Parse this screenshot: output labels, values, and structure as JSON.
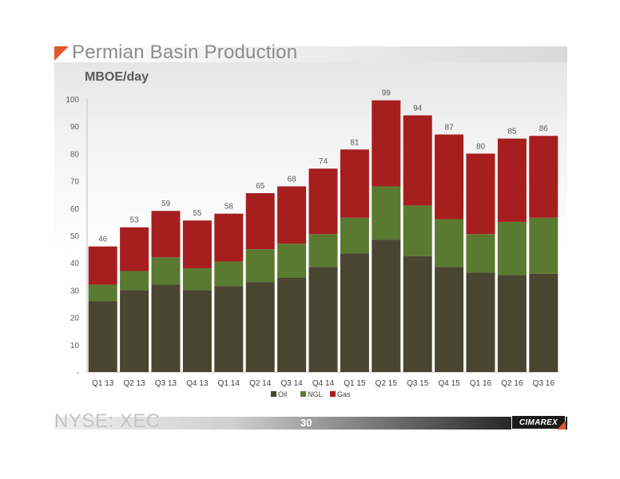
{
  "title": "Permian Basin Production",
  "subtitle": "MBOE/day",
  "footer": {
    "ticker": "NYSE: XEC",
    "page_number": "30",
    "logo_text": "CIMAREX"
  },
  "colors": {
    "oil": "#4a4530",
    "ngl": "#5b7a31",
    "gas": "#a61e1e",
    "accent": "#e2572b"
  },
  "chart_data": {
    "type": "bar",
    "stacked": true,
    "categories": [
      "Q1 13",
      "Q2 13",
      "Q3 13",
      "Q4 13",
      "Q1 14",
      "Q2 14",
      "Q3 14",
      "Q4 14",
      "Q1 15",
      "Q2 15",
      "Q3 15",
      "Q4 15",
      "Q1 16",
      "Q2 16",
      "Q3 16"
    ],
    "series": [
      {
        "name": "Oil",
        "values": [
          26,
          30,
          32,
          30,
          31.5,
          33,
          34.5,
          38.5,
          43.5,
          48.5,
          42.5,
          38.5,
          36.5,
          35.5,
          36
        ]
      },
      {
        "name": "NGL",
        "values": [
          6,
          7,
          10,
          8,
          9,
          12,
          12.5,
          12,
          13,
          19.5,
          18.5,
          17.5,
          14,
          19.5,
          20.5
        ]
      },
      {
        "name": "Gas",
        "values": [
          14,
          16,
          17,
          17.5,
          17.5,
          20.5,
          21,
          24,
          25,
          31.5,
          33,
          31,
          29.5,
          30.5,
          30
        ]
      }
    ],
    "totals": [
      "46",
      "53",
      "59",
      "55",
      "58",
      "65",
      "68",
      "74",
      "81",
      "99",
      "94",
      "87",
      "80",
      "85",
      "86"
    ],
    "yticks": [
      "-",
      "10",
      "20",
      "30",
      "40",
      "50",
      "60",
      "70",
      "80",
      "90",
      "100"
    ],
    "ylim": [
      0,
      100
    ],
    "grid": false,
    "legend": "bottom-center"
  }
}
